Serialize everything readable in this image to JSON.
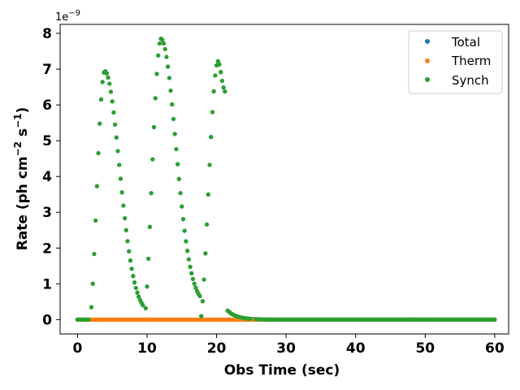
{
  "chart_data": {
    "type": "scatter",
    "title": "",
    "xlabel": "Obs Time (sec)",
    "ylabel_main": "Rate (ph cm",
    "ylabel_exp1": "−2",
    "ylabel_mid": " s",
    "ylabel_exp2": "−1",
    "ylabel_end": ")",
    "y_offset_base": "1e",
    "y_offset_exp": "−9",
    "y_unit_multiplier": 1e-09,
    "xlim": [
      -2.5,
      62
    ],
    "ylim": [
      -0.4,
      8.25
    ],
    "xticks": [
      0,
      10,
      20,
      30,
      40,
      50,
      60
    ],
    "yticks": [
      0,
      1,
      2,
      3,
      4,
      5,
      6,
      7,
      8
    ],
    "grid": false,
    "legend_position": "top-right",
    "sample_step_sec": 0.2,
    "sample_range_sec": [
      0,
      60
    ],
    "series": [
      {
        "name": "Total",
        "color": "#1f77b4",
        "marker": "circle",
        "description_values": "visually identical to Synch (Total = Therm + Synch); fully covered by the Synch points",
        "points": [
          [
            0,
            0
          ],
          [
            1.8,
            0.34
          ],
          [
            3.9,
            6.95
          ],
          [
            9.6,
            0.17
          ],
          [
            12.0,
            7.85
          ],
          [
            17.7,
            0.43
          ],
          [
            20.2,
            7.22
          ],
          [
            21.5,
            0.27
          ],
          [
            26.0,
            0.0
          ],
          [
            60,
            0.0
          ]
        ]
      },
      {
        "name": "Therm",
        "color": "#ff7f0e",
        "marker": "circle",
        "points": [
          [
            0,
            0.0
          ],
          [
            10,
            0.0
          ],
          [
            20,
            0.0
          ],
          [
            25,
            0.0
          ],
          [
            30,
            0.0
          ],
          [
            60,
            0.0
          ]
        ]
      },
      {
        "name": "Synch",
        "color": "#2ca02c",
        "marker": "circle",
        "pulses": [
          {
            "start": 1.8,
            "peak_time": 3.9,
            "peak": 6.95,
            "end": 9.6,
            "end_value": 0.17
          },
          {
            "start": 9.6,
            "peak_time": 12.0,
            "peak": 7.85,
            "end": 17.7,
            "end_value": 0.43
          },
          {
            "start": 17.7,
            "peak_time": 20.2,
            "peak": 7.22,
            "end": 21.4,
            "end_value": 6.3
          }
        ],
        "tail": {
          "start": 21.5,
          "start_value": 0.27,
          "decays_to_zero_by": 26.0
        },
        "key_points": [
          [
            1.8,
            0.34
          ],
          [
            2.4,
            4.4
          ],
          [
            3.9,
            6.95
          ],
          [
            5.5,
            5.4
          ],
          [
            7.5,
            1.3
          ],
          [
            9.6,
            0.17
          ],
          [
            10.4,
            3.8
          ],
          [
            12.0,
            7.85
          ],
          [
            14.0,
            5.7
          ],
          [
            16.0,
            1.6
          ],
          [
            17.7,
            0.43
          ],
          [
            18.6,
            4.1
          ],
          [
            20.2,
            7.22
          ],
          [
            21.2,
            3.8
          ],
          [
            21.5,
            0.27
          ],
          [
            23.0,
            0.1
          ],
          [
            26.0,
            0.0
          ],
          [
            60,
            0.0
          ]
        ]
      }
    ]
  }
}
